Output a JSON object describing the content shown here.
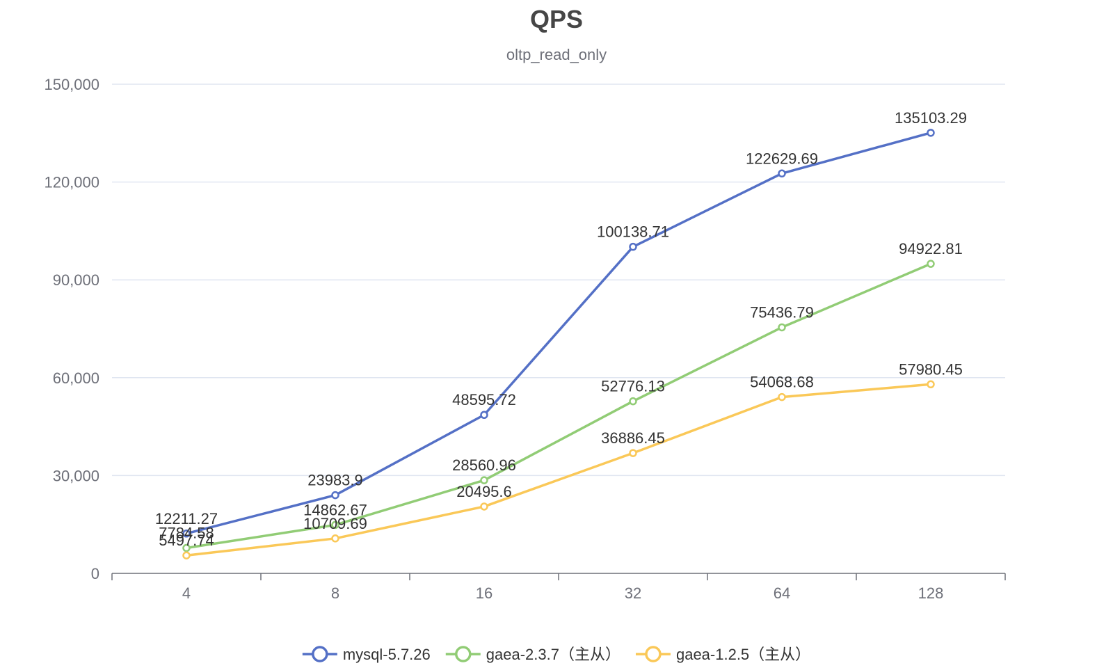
{
  "chart_data": {
    "type": "line",
    "title": "QPS",
    "subtitle": "oltp_read_only",
    "xlabel": "",
    "ylabel": "",
    "categories": [
      "4",
      "8",
      "16",
      "32",
      "64",
      "128"
    ],
    "ylim": [
      0,
      150000
    ],
    "yticks": [
      0,
      30000,
      60000,
      90000,
      120000,
      150000
    ],
    "ytick_labels": [
      "0",
      "30,000",
      "60,000",
      "90,000",
      "120,000",
      "150,000"
    ],
    "grid": true,
    "legend_position": "bottom",
    "series": [
      {
        "name": "mysql-5.7.26",
        "color": "#5470c6",
        "values": [
          12211.27,
          23983.9,
          48595.72,
          100138.71,
          122629.69,
          135103.29
        ],
        "labels": [
          "12211.27",
          "23983.9",
          "48595.72",
          "100138.71",
          "122629.69",
          "135103.29"
        ]
      },
      {
        "name": "gaea-2.3.7（主从）",
        "color": "#91cc75",
        "values": [
          7784.58,
          14862.67,
          28560.96,
          52776.13,
          75436.79,
          94922.81
        ],
        "labels": [
          "7784.58",
          "14862.67",
          "28560.96",
          "52776.13",
          "75436.79",
          "94922.81"
        ]
      },
      {
        "name": "gaea-1.2.5（主从）",
        "color": "#fac858",
        "values": [
          5497.74,
          10709.69,
          20495.6,
          36886.45,
          54068.68,
          57980.45
        ],
        "labels": [
          "5497.74",
          "10709.69",
          "20495.6",
          "36886.45",
          "54068.68",
          "57980.45"
        ]
      }
    ]
  }
}
